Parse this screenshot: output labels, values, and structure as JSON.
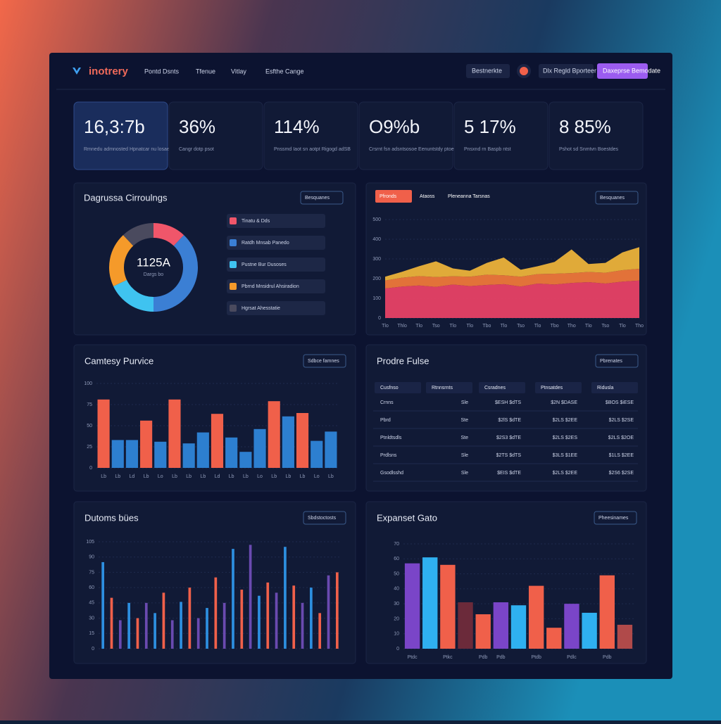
{
  "header": {
    "logo": "inotrery",
    "nav": [
      "Pontd Dsnts",
      "Tfenue",
      "Vitlay",
      "Esfthe Cange"
    ],
    "dropdown": "Bestnerkte",
    "button": "Dlx Regld Bporteer",
    "primary_button": "Daxeprse Bemodate"
  },
  "kpis": [
    {
      "value": "16,3:7b",
      "label": "Rmnedu admnosted Hpnatcar nu losaedy"
    },
    {
      "value": "36%",
      "label": "Cangr dotp psot"
    },
    {
      "value": "114%",
      "label": "Pnssmd Iaot sn aotpt Rigogd adSB"
    },
    {
      "value": "O9%b",
      "label": "Crsrnt fsn adsntsosoe Eenuntstdy ptoes pnt"
    },
    {
      "value": "5 17%",
      "label": "Pnsxnd rn Baspb ntst"
    },
    {
      "value": "8 85%",
      "label": "Pshot sd Snmtvn Boestdes"
    }
  ],
  "chart_data": [
    {
      "type": "pie",
      "title": "Dagrussa Cirroulngs",
      "dropdown": "Besquanes",
      "center_text": "1125A",
      "center_subtext": "Dargs bo",
      "categories": [
        "Tinatu & Dds",
        "Ratdh Mnsab Panedo",
        "Pustne Bur Dusoses",
        "Pbrnd Mnsidrul Ahsiradion",
        "Hgrsat Ahesstatie"
      ],
      "values": [
        12,
        38,
        18,
        20,
        12
      ],
      "colors": [
        "#f0566a",
        "#3b7fd4",
        "#3fc3f0",
        "#f59a2a",
        "#4a4a5e"
      ]
    },
    {
      "type": "area",
      "stacked": true,
      "tabs": [
        "Pfronds",
        "Ataoss",
        "Pleneanna Tarsnas"
      ],
      "dropdown": "Besquanes",
      "categories": [
        "Tlo",
        "Thlo",
        "Tlo",
        "Tso",
        "Tlo",
        "Tlo",
        "Tbo",
        "Tlo",
        "Tso",
        "Tlo",
        "Tbo",
        "Tho",
        "Tlo",
        "Tso",
        "Tlo",
        "Tho"
      ],
      "series": [
        {
          "color": "#ee4267",
          "values": [
            150,
            160,
            165,
            158,
            170,
            162,
            168,
            172,
            160,
            175,
            170,
            178,
            182,
            175,
            185,
            190
          ]
        },
        {
          "color": "#f47a3a",
          "values": [
            40,
            45,
            48,
            50,
            42,
            48,
            52,
            45,
            50,
            48,
            55,
            50,
            52,
            55,
            58,
            60
          ]
        },
        {
          "color": "#f2b63a",
          "values": [
            20,
            30,
            50,
            80,
            40,
            30,
            60,
            90,
            35,
            40,
            60,
            120,
            40,
            50,
            90,
            110
          ]
        }
      ],
      "ylim": [
        0,
        500
      ],
      "yticks": [
        0,
        100,
        200,
        300,
        400,
        500
      ],
      "grid": true
    },
    {
      "type": "bar",
      "title": "Camtesy Purvice",
      "dropdown": "Sdbce famnes",
      "categories": [
        "Lb",
        "Lb",
        "Ld",
        "Lb",
        "Lo",
        "Lb",
        "Lb",
        "Lb",
        "Ld",
        "Lb",
        "Lb",
        "Lo",
        "Lb",
        "Lb",
        "Lb",
        "Lo",
        "Lb"
      ],
      "values": [
        81,
        33,
        33,
        56,
        31,
        81,
        29,
        42,
        64,
        36,
        19,
        46,
        79,
        61,
        65,
        32,
        43
      ],
      "colors": [
        "#f0604a",
        "#2d7fd0",
        "#2d7fd0",
        "#f0604a",
        "#2d7fd0",
        "#f0604a",
        "#2d7fd0",
        "#2d7fd0",
        "#f0604a",
        "#2d7fd0",
        "#2d7fd0",
        "#2d7fd0",
        "#f0604a",
        "#2d7fd0",
        "#f0604a",
        "#2d7fd0",
        "#2d7fd0"
      ],
      "ylim": [
        0,
        100
      ],
      "yticks": [
        0,
        25,
        50,
        75,
        100
      ],
      "grid": true
    },
    {
      "type": "bar",
      "title": "Dutoms bües",
      "dropdown": "Sbdstoctosts",
      "categories": [
        null,
        null,
        null,
        null,
        null,
        null,
        null,
        null,
        null,
        null,
        null,
        null,
        null,
        null,
        null,
        null,
        null,
        null,
        null,
        null,
        null,
        null,
        null,
        null,
        null,
        null,
        null,
        null
      ],
      "values": [
        85,
        50,
        28,
        45,
        30,
        45,
        35,
        55,
        28,
        46,
        60,
        30,
        40,
        70,
        45,
        98,
        58,
        102,
        52,
        65,
        55,
        100,
        62,
        45,
        60,
        35,
        72,
        75
      ],
      "colors": [
        "#2d8fe0",
        "#f0604a",
        "#6a4ab0",
        "#2d8fe0",
        "#f0604a",
        "#6a4ab0",
        "#2d8fe0",
        "#f0604a",
        "#6a4ab0",
        "#2d8fe0",
        "#f0604a",
        "#6a4ab0",
        "#2d8fe0",
        "#f0604a",
        "#6a4ab0",
        "#2d8fe0",
        "#f0604a",
        "#6a4ab0",
        "#2d8fe0",
        "#f0604a",
        "#6a4ab0",
        "#2d8fe0",
        "#f0604a",
        "#6a4ab0",
        "#2d8fe0",
        "#f0604a",
        "#6a4ab0",
        "#f0604a"
      ],
      "ylim": [
        0,
        105
      ],
      "yticks": [
        0,
        15,
        30,
        45,
        60,
        75,
        90,
        105
      ],
      "grid": true
    },
    {
      "type": "bar",
      "title": "Expanset Gato",
      "dropdown": "Pheesinames",
      "categories": [
        "Ptdc",
        null,
        "Ptkc",
        null,
        "Pdb",
        "Pdb",
        null,
        "Ptdb",
        null,
        "Pdlc",
        null,
        "Pdb",
        null
      ],
      "values": [
        57,
        61,
        56,
        31,
        23,
        31,
        29,
        42,
        14,
        30,
        24,
        49,
        16
      ],
      "colors": [
        "#7a45c8",
        "#2fb0f0",
        "#f0604a",
        "#6b2a3a",
        "#f0604a",
        "#7a45c8",
        "#2fb0f0",
        "#f0604a",
        "#f0604a",
        "#7a45c8",
        "#2fb0f0",
        "#f0604a",
        "#b04a4a"
      ],
      "ylim": [
        0,
        70
      ],
      "yticks": [
        0,
        10,
        20,
        30,
        40,
        50,
        60,
        70
      ],
      "grid": true
    }
  ],
  "table": {
    "title": "Prodre Fulse",
    "dropdown": "Pbrenates",
    "columns": [
      "Cusfnso",
      "Rtnnsrnts",
      "Csradnes",
      "Ptnsatdes",
      "Ridusla"
    ],
    "rows": [
      [
        "Crnns",
        "Sle",
        "$ESH $dTS",
        "$2N $DASE",
        "$BOS $iESE"
      ],
      [
        "Pbrd",
        "Ste",
        "$2lS $dTE",
        "$2LS $2EE",
        "$2LS $2SE"
      ],
      [
        "Ptnldtsdls",
        "Ste",
        "$2S3 $dTE",
        "$2LS $2ES",
        "$2LS $2OE"
      ],
      [
        "Prdlsns",
        "Sle",
        "$2TS $dTS",
        "$3LS $1EE",
        "$1LS $2EE"
      ],
      [
        "Gsodlsshd",
        "Sle",
        "$EIS $dTE",
        "$2LS $2EE",
        "$2S6 $2SE"
      ]
    ]
  }
}
